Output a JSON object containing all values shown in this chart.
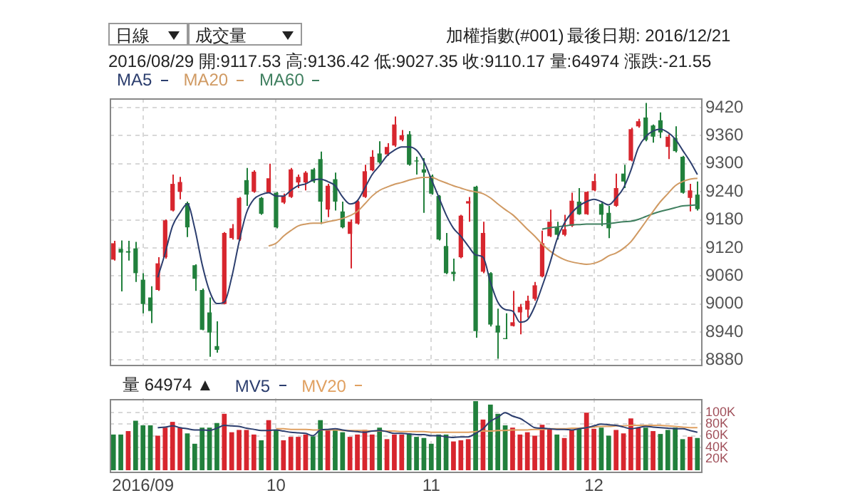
{
  "chart_data": [
    {
      "type": "candlestick",
      "title": "加權指數(#001)",
      "subtitle": "2016/08/29 開:9117.53 高:9136.42 低:9027.35 收:9110.17 量:64974 漲跌:-21.55",
      "annotations": [
        "日線",
        "成交量",
        "最後日期: 2016/12/21"
      ],
      "categories": [
        null,
        null,
        null,
        null,
        "2016/09",
        null,
        null,
        null,
        null,
        null,
        null,
        null,
        null,
        null,
        null,
        null,
        null,
        null,
        null,
        null,
        null,
        null,
        "10",
        null,
        null,
        null,
        null,
        null,
        null,
        null,
        null,
        null,
        null,
        null,
        null,
        null,
        null,
        null,
        null,
        null,
        null,
        null,
        null,
        "11",
        null,
        null,
        null,
        null,
        null,
        null,
        null,
        null,
        null,
        null,
        null,
        null,
        null,
        null,
        null,
        null,
        null,
        null,
        null,
        null,
        null,
        "12",
        null,
        null,
        null,
        null,
        null,
        null,
        null,
        null,
        null,
        null,
        null,
        null,
        null,
        null
      ],
      "ohlc": [
        [
          9095,
          9135,
          9093,
          9130
        ],
        [
          9118,
          9136,
          9027,
          9110
        ],
        [
          9113,
          9135,
          9093,
          9110
        ],
        [
          9119,
          9133,
          9047,
          9066
        ],
        [
          9052,
          9066,
          8980,
          9000
        ],
        [
          9014,
          9038,
          8959,
          8985
        ],
        [
          9030,
          9100,
          9028,
          9087
        ],
        [
          9100,
          9181,
          9097,
          9179
        ],
        [
          9200,
          9277,
          9198,
          9257
        ],
        [
          9240,
          9272,
          9224,
          9261
        ],
        [
          9216,
          9219,
          9143,
          9164
        ],
        [
          9083,
          9085,
          9028,
          9054
        ],
        [
          9030,
          9033,
          8944,
          8945
        ],
        [
          8982,
          9014,
          8887,
          8939
        ],
        [
          8910,
          8963,
          8896,
          8902
        ],
        [
          9000,
          9154,
          9000,
          9152
        ],
        [
          9141,
          9171,
          9138,
          9162
        ],
        [
          9138,
          9229,
          9135,
          9227
        ],
        [
          9265,
          9291,
          9210,
          9234
        ],
        [
          9240,
          9286,
          9238,
          9283
        ],
        [
          9227,
          9229,
          9191,
          9193
        ],
        [
          9238,
          9300,
          9236,
          9269
        ],
        [
          9238,
          9240,
          9162,
          9164
        ],
        [
          9217,
          9236,
          9214,
          9231
        ],
        [
          9229,
          9291,
          9227,
          9288
        ],
        [
          9260,
          9277,
          9248,
          9272
        ],
        [
          9260,
          9284,
          9243,
          9281
        ],
        [
          9288,
          9291,
          9259,
          9262
        ],
        [
          9310,
          9326,
          9171,
          9219
        ],
        [
          9202,
          9257,
          9186,
          9253
        ],
        [
          9267,
          9281,
          9200,
          9219
        ],
        [
          9198,
          9219,
          9162,
          9164
        ],
        [
          9150,
          9181,
          9076,
          9176
        ],
        [
          9172,
          9221,
          9170,
          9219
        ],
        [
          9229,
          9298,
          9227,
          9284
        ],
        [
          9286,
          9329,
          9284,
          9315
        ],
        [
          9322,
          9348,
          9300,
          9303
        ],
        [
          9320,
          9344,
          9317,
          9336
        ],
        [
          9339,
          9401,
          9336,
          9384
        ],
        [
          9351,
          9372,
          9348,
          9361
        ],
        [
          9363,
          9370,
          9296,
          9298
        ],
        [
          9307,
          9315,
          9277,
          9305
        ],
        [
          9288,
          9312,
          9195,
          9281
        ],
        [
          9274,
          9277,
          9234,
          9236
        ],
        [
          9231,
          9233,
          9136,
          9138
        ],
        [
          9124,
          9152,
          9064,
          9066
        ],
        [
          9069,
          9097,
          9049,
          9064
        ],
        [
          9100,
          9191,
          9098,
          9189
        ],
        [
          9215,
          9229,
          9176,
          9220
        ],
        [
          9251,
          9253,
          8928,
          8942
        ],
        [
          9069,
          9176,
          9066,
          9152
        ],
        [
          9066,
          9068,
          8952,
          8956
        ],
        [
          8954,
          8990,
          8883,
          8939
        ],
        [
          8927,
          8980,
          8925,
          8925
        ],
        [
          8953,
          9028,
          8952,
          8961
        ],
        [
          8982,
          9000,
          8935,
          8994
        ],
        [
          8988,
          9018,
          8971,
          9007
        ],
        [
          9011,
          9047,
          9007,
          9040
        ],
        [
          9059,
          9157,
          9057,
          9130
        ],
        [
          9145,
          9202,
          9143,
          9176
        ],
        [
          9164,
          9176,
          9138,
          9148
        ],
        [
          9148,
          9191,
          9145,
          9160
        ],
        [
          9167,
          9238,
          9165,
          9221
        ],
        [
          9219,
          9248,
          9191,
          9192
        ],
        [
          9192,
          9241,
          9191,
          9240
        ],
        [
          9243,
          9279,
          9241,
          9263
        ],
        [
          9214,
          9217,
          9167,
          9191
        ],
        [
          9195,
          9210,
          9141,
          9162
        ],
        [
          9210,
          9279,
          9208,
          9248
        ],
        [
          9279,
          9298,
          9248,
          9262
        ],
        [
          9307,
          9377,
          9305,
          9374
        ],
        [
          9380,
          9396,
          9377,
          9391
        ],
        [
          9399,
          9430,
          9348,
          9351
        ],
        [
          9382,
          9384,
          9345,
          9358
        ],
        [
          9393,
          9410,
          9355,
          9367
        ],
        [
          9336,
          9363,
          9310,
          9358
        ],
        [
          9355,
          9380,
          9324,
          9327
        ],
        [
          9315,
          9317,
          9236,
          9238
        ],
        [
          9227,
          9257,
          9198,
          9243
        ],
        [
          9234,
          9262,
          9200,
          9203
        ]
      ],
      "colors": [
        "#d7262e",
        "#21803c",
        "#21803c",
        "#21803c",
        "#21803c",
        "#21803c",
        "#d7262e",
        "#d7262e",
        "#d7262e",
        "#d7262e",
        "#21803c",
        "#21803c",
        "#21803c",
        "#21803c",
        "#21803c",
        "#d7262e",
        "#d7262e",
        "#d7262e",
        "#21803c",
        "#d7262e",
        "#21803c",
        "#d7262e",
        "#21803c",
        "#d7262e",
        "#d7262e",
        "#d7262e",
        "#d7262e",
        "#21803c",
        "#21803c",
        "#d7262e",
        "#21803c",
        "#21803c",
        "#d7262e",
        "#d7262e",
        "#d7262e",
        "#d7262e",
        "#21803c",
        "#d7262e",
        "#d7262e",
        "#d7262e",
        "#21803c",
        "#21803c",
        "#21803c",
        "#21803c",
        "#21803c",
        "#21803c",
        "#21803c",
        "#d7262e",
        "#d7262e",
        "#21803c",
        "#d7262e",
        "#21803c",
        "#21803c",
        "#21803c",
        "#d7262e",
        "#d7262e",
        "#d7262e",
        "#d7262e",
        "#d7262e",
        "#d7262e",
        "#21803c",
        "#d7262e",
        "#d7262e",
        "#21803c",
        "#d7262e",
        "#d7262e",
        "#21803c",
        "#21803c",
        "#d7262e",
        "#21803c",
        "#d7262e",
        "#d7262e",
        "#21803c",
        "#21803c",
        "#21803c",
        "#d7262e",
        "#21803c",
        "#21803c",
        "#d7262e",
        "#21803c"
      ],
      "series": [
        {
          "name": "MA5",
          "type": "line",
          "color": "#2c3e6e",
          "values": [
            null,
            null,
            null,
            null,
            null,
            null,
            9057,
            9109,
            9167,
            9195,
            9214,
            9162,
            9085,
            9028,
            9001,
            9004,
            9057,
            9133,
            9195,
            9224,
            9234,
            9238,
            9231,
            9231,
            9243,
            9253,
            9257,
            9265,
            9267,
            9262,
            9253,
            9229,
            9214,
            9221,
            9248,
            9277,
            9296,
            9317,
            9329,
            9336,
            9336,
            9329,
            9305,
            9267,
            9229,
            9191,
            9162,
            9145,
            9124,
            9105,
            9100,
            9047,
            9004,
            8988,
            8985,
            8961,
            8966,
            8995,
            9038,
            9085,
            9138,
            9173,
            9195,
            9210,
            9219,
            9224,
            9219,
            9212,
            9227,
            9248,
            9286,
            9334,
            9358,
            9370,
            9374,
            9367,
            9353,
            9329,
            9305,
            9277
          ]
        },
        {
          "name": "MA20",
          "type": "line",
          "color": "#d09a63",
          "values": [
            null,
            null,
            null,
            null,
            null,
            null,
            null,
            null,
            null,
            null,
            null,
            null,
            null,
            null,
            null,
            null,
            null,
            null,
            null,
            null,
            null,
            9124,
            9130,
            9145,
            9157,
            9167,
            9171,
            9173,
            9173,
            9176,
            9179,
            9183,
            9189,
            9198,
            9214,
            9231,
            9243,
            9250,
            9256,
            9260,
            9265,
            9269,
            9271,
            9271,
            9265,
            9259,
            9253,
            9248,
            9243,
            9240,
            9236,
            9227,
            9214,
            9202,
            9191,
            9176,
            9160,
            9145,
            9128,
            9114,
            9103,
            9095,
            9090,
            9087,
            9085,
            9087,
            9093,
            9103,
            9109,
            9119,
            9133,
            9154,
            9176,
            9198,
            9219,
            9236,
            9253,
            9262,
            9267,
            9269
          ]
        },
        {
          "name": "MA60",
          "type": "line",
          "color": "#3f7f5f",
          "values": [
            null,
            null,
            null,
            null,
            null,
            null,
            null,
            null,
            null,
            null,
            null,
            null,
            null,
            null,
            null,
            null,
            null,
            null,
            null,
            null,
            null,
            null,
            null,
            null,
            null,
            null,
            null,
            null,
            null,
            null,
            null,
            null,
            null,
            null,
            null,
            null,
            null,
            null,
            null,
            null,
            null,
            null,
            null,
            null,
            null,
            null,
            null,
            null,
            null,
            null,
            null,
            null,
            null,
            null,
            null,
            null,
            null,
            null,
            9160,
            9163,
            9165,
            9167,
            9169,
            9170,
            9171,
            9171,
            9171,
            9172,
            9174,
            9176,
            9177,
            9181,
            9187,
            9193,
            9198,
            9202,
            9206,
            9210,
            9211,
            9212
          ]
        }
      ],
      "ylim": [
        8870,
        9440
      ],
      "yticks": [
        8880,
        8940,
        9000,
        9060,
        9120,
        9180,
        9240,
        9300,
        9360,
        9420
      ],
      "grid": true,
      "legend": "top left",
      "tick_labels": "y"
    },
    {
      "type": "bar",
      "legend_title": "量 64974 ▲",
      "categories": [
        null,
        null,
        null,
        null,
        "2016/09",
        null,
        null,
        null,
        null,
        null,
        null,
        null,
        null,
        null,
        null,
        null,
        null,
        null,
        null,
        null,
        null,
        null,
        "10",
        null,
        null,
        null,
        null,
        null,
        null,
        null,
        null,
        null,
        null,
        null,
        null,
        null,
        null,
        null,
        null,
        null,
        null,
        null,
        null,
        "11",
        null,
        null,
        null,
        null,
        null,
        null,
        null,
        null,
        null,
        null,
        null,
        null,
        null,
        null,
        null,
        null,
        null,
        null,
        null,
        null,
        null,
        "12",
        null,
        null,
        null,
        null,
        null,
        null,
        null,
        null,
        null,
        null,
        null,
        null,
        null,
        null
      ],
      "series": [
        {
          "values": [
            62000,
            62000,
            68000,
            86000,
            78000,
            78000,
            60000,
            74000,
            84000,
            74000,
            64000,
            46000,
            74000,
            74000,
            82000,
            98000,
            66000,
            70000,
            70000,
            62000,
            52000,
            87000,
            70000,
            52000,
            58000,
            58000,
            62000,
            59000,
            87000,
            70000,
            70000,
            66000,
            58000,
            62000,
            70000,
            62000,
            74000,
            54000,
            62000,
            62000,
            64000,
            58000,
            56000,
            46000,
            62000,
            62000,
            50000,
            52000,
            54000,
            120000,
            88000,
            114000,
            98000,
            78000,
            74000,
            62000,
            66000,
            60000,
            79000,
            72000,
            62000,
            56000,
            70000,
            74000,
            100000,
            72000,
            74000,
            60000,
            70000,
            64000,
            90000,
            74000,
            74000,
            68000,
            63000,
            70000,
            74000,
            54000,
            58000,
            56000
          ],
          "colors": [
            "#21803c",
            "#21803c",
            "#d7262e",
            "#21803c",
            "#21803c",
            "#21803c",
            "#d7262e",
            "#d7262e",
            "#d7262e",
            "#d7262e",
            "#21803c",
            "#21803c",
            "#21803c",
            "#21803c",
            "#21803c",
            "#d7262e",
            "#d7262e",
            "#d7262e",
            "#d7262e",
            "#d7262e",
            "#21803c",
            "#d7262e",
            "#21803c",
            "#d7262e",
            "#d7262e",
            "#d7262e",
            "#d7262e",
            "#21803c",
            "#21803c",
            "#d7262e",
            "#21803c",
            "#21803c",
            "#d7262e",
            "#d7262e",
            "#d7262e",
            "#d7262e",
            "#21803c",
            "#d7262e",
            "#d7262e",
            "#d7262e",
            "#21803c",
            "#21803c",
            "#21803c",
            "#21803c",
            "#21803c",
            "#21803c",
            "#d7262e",
            "#d7262e",
            "#d7262e",
            "#21803c",
            "#d7262e",
            "#21803c",
            "#21803c",
            "#21803c",
            "#d7262e",
            "#d7262e",
            "#d7262e",
            "#d7262e",
            "#d7262e",
            "#d7262e",
            "#21803c",
            "#d7262e",
            "#d7262e",
            "#21803c",
            "#d7262e",
            "#d7262e",
            "#21803c",
            "#21803c",
            "#d7262e",
            "#d7262e",
            "#d7262e",
            "#d7262e",
            "#21803c",
            "#d7262e",
            "#21803c",
            "#21803c",
            "#21803c",
            "#21803c",
            "#d7262e",
            "#21803c"
          ]
        },
        {
          "name": "MV5",
          "type": "line",
          "color": "#2c3e6e",
          "values": [
            null,
            null,
            null,
            null,
            null,
            null,
            74000,
            75000,
            77000,
            74000,
            72000,
            70000,
            70000,
            69000,
            73000,
            78000,
            77000,
            76000,
            73000,
            71000,
            69000,
            69000,
            70000,
            68000,
            66000,
            65000,
            64000,
            60000,
            70000,
            71000,
            72000,
            70000,
            68000,
            67000,
            66000,
            68000,
            69000,
            67000,
            64000,
            64000,
            63000,
            62000,
            62000,
            60000,
            60000,
            58000,
            57000,
            58000,
            58000,
            64000,
            72000,
            85000,
            92000,
            100000,
            94000,
            90000,
            82000,
            74000,
            73000,
            72000,
            71000,
            71000,
            70000,
            72000,
            74000,
            77000,
            80000,
            79000,
            78000,
            75000,
            72000,
            74000,
            76000,
            75000,
            74000,
            73000,
            72000,
            72000,
            69000,
            66000
          ]
        },
        {
          "name": "MV20",
          "type": "line",
          "color": "#e0a060",
          "values": [
            null,
            null,
            null,
            null,
            null,
            null,
            null,
            null,
            null,
            null,
            null,
            null,
            null,
            null,
            null,
            null,
            null,
            null,
            null,
            null,
            null,
            null,
            72000,
            72000,
            71000,
            71000,
            71000,
            70000,
            70000,
            70000,
            70000,
            69000,
            69000,
            69000,
            69000,
            68000,
            68000,
            68000,
            68000,
            67000,
            67000,
            67000,
            67000,
            66000,
            66000,
            66000,
            66000,
            66000,
            66000,
            67000,
            68000,
            68000,
            69000,
            69000,
            70000,
            70000,
            70000,
            71000,
            71000,
            72000,
            72000,
            72000,
            73000,
            73000,
            74000,
            75000,
            76000,
            76000,
            77000,
            77000,
            78000,
            78000,
            78000,
            78000,
            78000,
            77000,
            76000,
            75000,
            74000,
            74000
          ]
        }
      ],
      "ylim": [
        0,
        125000
      ],
      "yticks": [
        {
          "value": 20000,
          "label": "20K"
        },
        {
          "value": 40000,
          "label": "40K"
        },
        {
          "value": 60000,
          "label": "60K"
        },
        {
          "value": 80000,
          "label": "80K"
        },
        {
          "value": 100000,
          "label": "100K"
        }
      ],
      "grid": true,
      "legend": "top left"
    }
  ]
}
